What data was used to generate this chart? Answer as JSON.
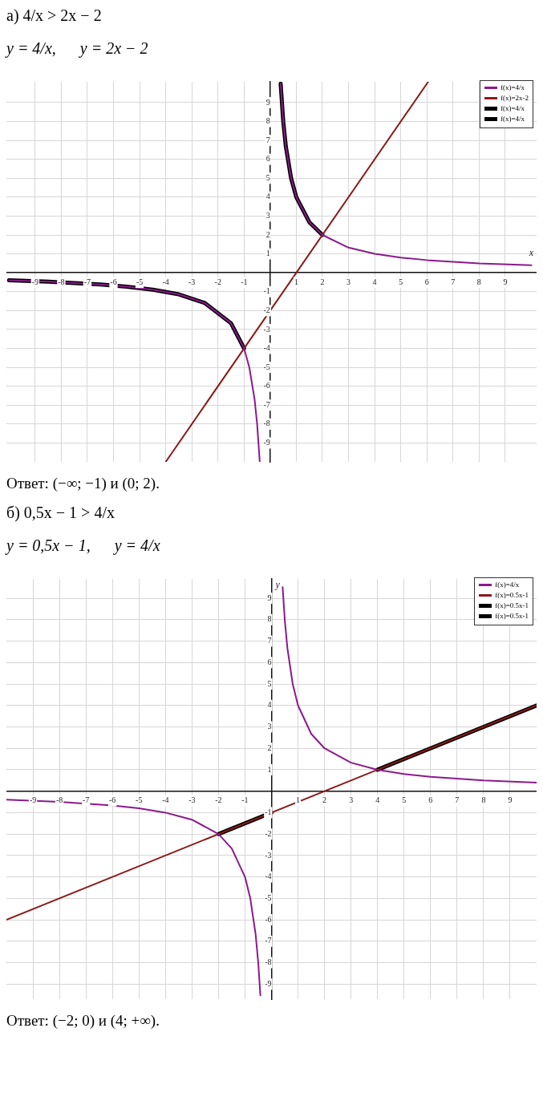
{
  "chart_data": [
    {
      "type": "line",
      "title": "а) 4/x > 2x − 2",
      "subtitle": "y = 4/x,      y = 2x − 2",
      "xlabel": "x",
      "annotations": [
        "Ответ: (−∞; −1) и (0; 2)."
      ],
      "xlim": [
        -10.1,
        10.2
      ],
      "ylim": [
        -10,
        10.1
      ],
      "xticks": [
        -9,
        -8,
        -7,
        -6,
        -5,
        -4,
        -3,
        -2,
        -1,
        1,
        2,
        3,
        4,
        5,
        6,
        7,
        8,
        9
      ],
      "yticks": [
        -9,
        -8,
        -7,
        -6,
        -5,
        -4,
        -3,
        -2,
        -1,
        1,
        2,
        3,
        4,
        5,
        6,
        7,
        8,
        9
      ],
      "grid": true,
      "legend": "top right",
      "marker": "none",
      "line_style": "solid",
      "series": [
        {
          "name": "f(x)=4/x",
          "color": "#8b1a8b",
          "x": [
            -10,
            -8.5,
            -6.5,
            -5.5,
            -4.5,
            -3.5,
            -2.5,
            -1.5,
            -1,
            -0.8,
            -0.6,
            -0.5,
            -0.4,
            0,
            0.4,
            0.5,
            0.6,
            0.8,
            1,
            1.5,
            2,
            3,
            4,
            5,
            6,
            8,
            10
          ],
          "values": [
            -0.4,
            -0.47,
            -0.62,
            -0.73,
            -0.89,
            -1.14,
            -1.6,
            -2.67,
            -4,
            -5,
            -6.67,
            -8,
            -10,
            null,
            10,
            8,
            6.67,
            5,
            4,
            2.67,
            2,
            1.33,
            1,
            0.8,
            0.67,
            0.5,
            0.4
          ]
        },
        {
          "name": "f(x)=2x-2",
          "color": "#8b1a1a",
          "x": [
            -4,
            6.05
          ],
          "values": [
            -10,
            10.1
          ]
        },
        {
          "name": "f(x)=4/x",
          "color": "#000000",
          "x": [
            -10,
            -8.5,
            -6.5,
            -5.5,
            -4.5,
            -3.5,
            -2.5,
            -1.5,
            -1
          ],
          "values": [
            -0.4,
            -0.47,
            -0.62,
            -0.73,
            -0.89,
            -1.14,
            -1.6,
            -2.67,
            -4
          ]
        },
        {
          "name": "f(x)=4/x",
          "color": "#000000",
          "x": [
            0.4,
            0.5,
            0.6,
            0.8,
            1,
            1.5,
            2
          ],
          "values": [
            10,
            8,
            6.67,
            5,
            4,
            2.67,
            2
          ]
        }
      ]
    },
    {
      "type": "line",
      "title": "б) 0,5x − 1 > 4/x",
      "subtitle": "y = 0,5x − 1,      y = 4/x",
      "ylabel": "y",
      "annotations": [
        "Ответ: (−2; 0) и (4; +∞)."
      ],
      "xlim": [
        -10,
        10
      ],
      "ylim": [
        -9.7,
        9.9
      ],
      "xticks": [
        -9,
        -8,
        -7,
        -6,
        -5,
        -4,
        -3,
        -2,
        -1,
        1,
        2,
        3,
        4,
        5,
        6,
        7,
        8,
        9
      ],
      "yticks": [
        -9,
        -8,
        -7,
        -6,
        -5,
        -4,
        -3,
        -2,
        -1,
        1,
        2,
        3,
        4,
        5,
        6,
        7,
        8,
        9
      ],
      "grid": true,
      "legend": "top right",
      "marker": "none",
      "line_style": "solid",
      "series": [
        {
          "name": "f(x)=4/x",
          "color": "#8b1a8b",
          "x": [
            -10,
            -8,
            -6,
            -5,
            -4,
            -3,
            -2,
            -1.5,
            -1,
            -0.8,
            -0.6,
            -0.5,
            -0.42,
            0,
            0.42,
            0.5,
            0.6,
            0.8,
            1,
            1.5,
            2,
            3,
            4,
            5,
            6,
            8,
            10
          ],
          "values": [
            -0.4,
            -0.5,
            -0.67,
            -0.8,
            -1,
            -1.33,
            -2,
            -2.67,
            -4,
            -5,
            -6.67,
            -8,
            -9.52,
            null,
            9.52,
            8,
            6.67,
            5,
            4,
            2.67,
            2,
            1.33,
            1,
            0.8,
            0.67,
            0.5,
            0.4
          ]
        },
        {
          "name": "f(x)=0.5x-1",
          "color": "#8b1a1a",
          "x": [
            -10,
            10
          ],
          "values": [
            -6,
            4
          ]
        },
        {
          "name": "f(x)=0.5x-1",
          "color": "#000000",
          "x": [
            -2,
            0
          ],
          "values": [
            -2,
            -1
          ]
        },
        {
          "name": "f(x)=0.5x-1",
          "color": "#000000",
          "x": [
            4,
            10
          ],
          "values": [
            1,
            4
          ]
        }
      ]
    }
  ]
}
